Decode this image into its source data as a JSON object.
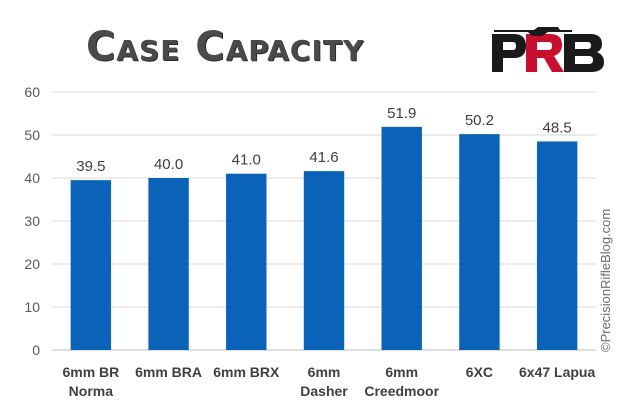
{
  "chart_data": {
    "type": "bar",
    "title": "Case Capacity",
    "categories": [
      "6mm BR Norma",
      "6mm BRA",
      "6mm BRX",
      "6mm Dasher",
      "6mm Creedmoor",
      "6XC",
      "6x47 Lapua"
    ],
    "category_lines": [
      [
        "6mm BR",
        "Norma"
      ],
      [
        "6mm BRA"
      ],
      [
        "6mm BRX"
      ],
      [
        "6mm",
        "Dasher"
      ],
      [
        "6mm",
        "Creedmoor"
      ],
      [
        "6XC"
      ],
      [
        "6x47 Lapua"
      ]
    ],
    "values": [
      39.5,
      40.0,
      41.0,
      41.6,
      51.9,
      50.2,
      48.5
    ],
    "value_labels": [
      "39.5",
      "40.0",
      "41.0",
      "41.6",
      "51.9",
      "50.2",
      "48.5"
    ],
    "ylim": [
      0,
      60
    ],
    "yticks": [
      0,
      10,
      20,
      30,
      40,
      50,
      60
    ],
    "xlabel": "",
    "ylabel": "",
    "grid": true,
    "bar_color": "#0A63B8",
    "grid_color": "#D9D9D9"
  },
  "logo": {
    "text": "PRB",
    "colors": {
      "dark": "#1a1a1a",
      "accent": "#C8102E"
    }
  },
  "watermark": "©PrecisionRifleBlog.com"
}
